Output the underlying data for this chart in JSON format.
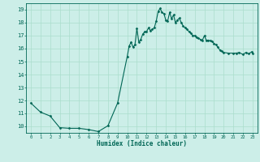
{
  "title": "",
  "xlabel": "Humidex (Indice chaleur)",
  "background_color": "#cceee8",
  "grid_color": "#aaddcc",
  "line_color": "#006655",
  "xlim": [
    -0.5,
    23.5
  ],
  "ylim": [
    9.5,
    19.5
  ],
  "yticks": [
    10,
    11,
    12,
    13,
    14,
    15,
    16,
    17,
    18,
    19
  ],
  "xticks": [
    0,
    1,
    2,
    3,
    4,
    5,
    6,
    7,
    8,
    9,
    10,
    11,
    12,
    13,
    14,
    15,
    16,
    17,
    18,
    19,
    20,
    21,
    22,
    23
  ],
  "x": [
    0,
    1,
    2,
    3,
    4,
    5,
    6,
    7,
    8,
    9,
    10,
    10.2,
    10.4,
    10.6,
    10.8,
    11,
    11.2,
    11.4,
    11.6,
    11.8,
    12,
    12.2,
    12.4,
    12.6,
    12.8,
    13,
    13.2,
    13.4,
    13.6,
    13.8,
    14,
    14.2,
    14.4,
    14.6,
    14.8,
    15,
    15.2,
    15.4,
    15.6,
    15.8,
    16,
    16.2,
    16.4,
    16.6,
    16.8,
    17,
    17.2,
    17.4,
    17.6,
    17.8,
    18,
    18.2,
    18.4,
    18.6,
    18.8,
    19,
    19.2,
    19.4,
    19.6,
    19.8,
    20,
    20.5,
    21,
    21.3,
    21.6,
    22,
    22.3,
    22.6,
    22.9,
    23
  ],
  "y": [
    11.8,
    11.1,
    10.8,
    9.9,
    9.85,
    9.85,
    9.75,
    9.6,
    10.05,
    11.8,
    15.4,
    16.2,
    16.5,
    16.1,
    16.3,
    17.55,
    16.5,
    16.7,
    17.1,
    17.3,
    17.3,
    17.6,
    17.4,
    17.5,
    17.6,
    18.1,
    18.85,
    19.1,
    18.8,
    18.7,
    18.2,
    18.15,
    18.8,
    18.3,
    18.6,
    18.0,
    18.2,
    18.35,
    18.0,
    17.75,
    17.6,
    17.5,
    17.3,
    17.2,
    17.0,
    17.0,
    16.85,
    16.8,
    16.7,
    16.65,
    17.0,
    16.65,
    16.65,
    16.6,
    16.55,
    16.4,
    16.3,
    16.1,
    15.9,
    15.8,
    15.7,
    15.65,
    15.65,
    15.65,
    15.7,
    15.55,
    15.7,
    15.6,
    15.75,
    15.65
  ]
}
